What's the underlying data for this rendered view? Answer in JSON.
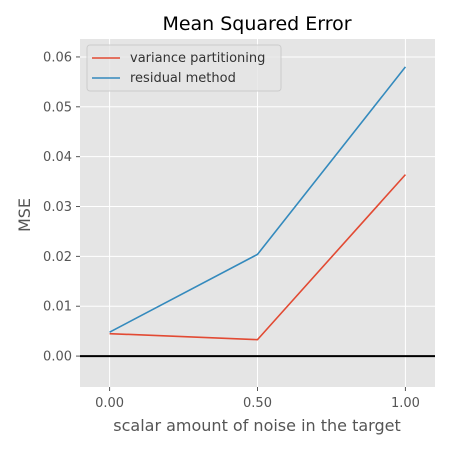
{
  "chart_data": {
    "type": "line",
    "title": "Mean Squared Error",
    "xlabel": "scalar amount of noise in the target",
    "ylabel": "MSE",
    "x": [
      0.0,
      0.5,
      1.0
    ],
    "xticks": [
      "0.00",
      "0.50",
      "1.00"
    ],
    "yticks": [
      "0.00",
      "0.01",
      "0.02",
      "0.03",
      "0.04",
      "0.05",
      "0.06"
    ],
    "xlim": [
      -0.1,
      1.1
    ],
    "ylim": [
      -0.0062,
      0.0636
    ],
    "series": [
      {
        "name": "variance partitioning",
        "color": "#E24A33",
        "values": [
          0.0045,
          0.0033,
          0.0364
        ]
      },
      {
        "name": "residual method",
        "color": "#348ABD",
        "values": [
          0.0048,
          0.0204,
          0.058
        ]
      }
    ],
    "reference_line": {
      "y": 0.0,
      "color": "#000000"
    },
    "grid": true,
    "background": "#E5E5E5",
    "legend_position": "upper-left"
  }
}
